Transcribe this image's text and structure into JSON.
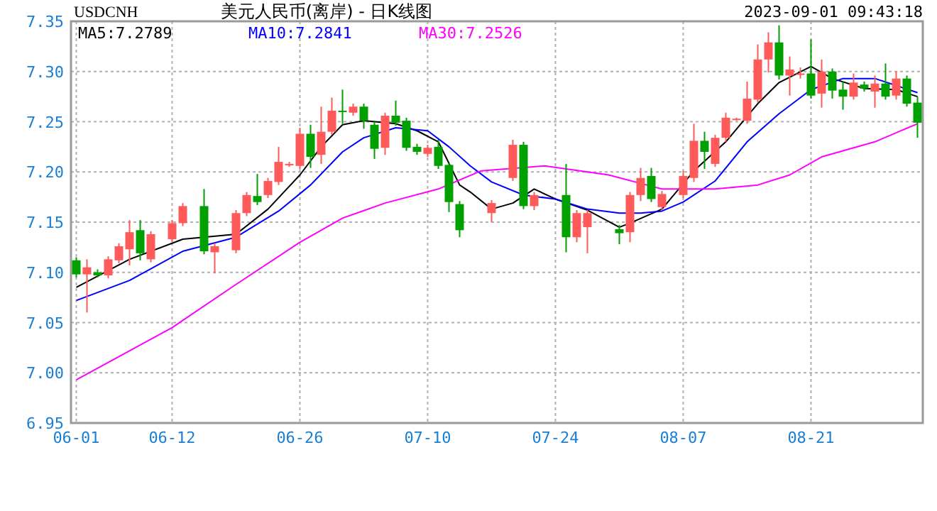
{
  "chart_data": {
    "type": "candlestick",
    "title": "美元人民币(离岸) - 日K线图",
    "annotations": [
      "USDCNH",
      "2023-09-01 09:43:18"
    ],
    "categories": [
      "06-01",
      null,
      null,
      null,
      null,
      null,
      null,
      null,
      null,
      "06-12",
      null,
      null,
      null,
      null,
      null,
      null,
      null,
      null,
      null,
      null,
      null,
      "06-26",
      null,
      null,
      null,
      null,
      null,
      null,
      null,
      null,
      null,
      null,
      null,
      "07-10",
      null,
      null,
      null,
      null,
      null,
      null,
      null,
      null,
      null,
      null,
      null,
      "07-24",
      null,
      null,
      null,
      null,
      null,
      null,
      null,
      null,
      null,
      null,
      null,
      "08-07",
      null,
      null,
      null,
      null,
      null,
      null,
      null,
      null,
      null,
      null,
      null,
      "08-21",
      null,
      null,
      null,
      null,
      null,
      null,
      null,
      null,
      null,
      null
    ],
    "ohlc": [
      [
        7.112,
        7.115,
        7.095,
        7.098
      ],
      [
        7.098,
        7.113,
        7.06,
        7.105
      ],
      [
        7.1,
        7.103,
        7.095,
        7.097
      ],
      [
        7.097,
        7.116,
        7.094,
        7.113
      ],
      [
        7.112,
        7.129,
        7.109,
        7.126
      ],
      [
        7.123,
        7.152,
        7.107,
        7.14
      ],
      [
        7.142,
        7.152,
        7.112,
        7.119
      ],
      [
        7.113,
        7.141,
        7.11,
        7.138
      ],
      null,
      [
        7.133,
        7.152,
        7.13,
        7.149
      ],
      [
        7.149,
        7.169,
        7.146,
        7.166
      ],
      null,
      [
        7.166,
        7.183,
        7.118,
        7.121
      ],
      [
        7.12,
        7.129,
        7.099,
        7.126
      ],
      null,
      [
        7.122,
        7.162,
        7.119,
        7.159
      ],
      [
        7.159,
        7.18,
        7.156,
        7.177
      ],
      [
        7.176,
        7.198,
        7.167,
        7.17
      ],
      [
        7.177,
        7.194,
        7.174,
        7.191
      ],
      [
        7.19,
        7.225,
        7.187,
        7.21
      ],
      [
        7.207,
        7.21,
        7.205,
        7.208
      ],
      [
        7.206,
        7.244,
        7.203,
        7.238
      ],
      [
        7.238,
        7.247,
        7.204,
        7.215
      ],
      [
        7.217,
        7.265,
        7.208,
        7.24
      ],
      [
        7.24,
        7.274,
        7.237,
        7.261
      ],
      [
        7.261,
        7.282,
        7.248,
        7.26
      ],
      [
        7.259,
        7.268,
        7.256,
        7.265
      ],
      [
        7.265,
        7.268,
        7.243,
        7.251
      ],
      [
        7.247,
        7.25,
        7.213,
        7.223
      ],
      [
        7.224,
        7.259,
        7.217,
        7.256
      ],
      [
        7.256,
        7.271,
        7.246,
        7.249
      ],
      [
        7.251,
        7.254,
        7.221,
        7.224
      ],
      [
        7.225,
        7.228,
        7.217,
        7.22
      ],
      [
        7.218,
        7.227,
        7.215,
        7.224
      ],
      [
        7.225,
        7.232,
        7.203,
        7.206
      ],
      [
        7.207,
        7.209,
        7.16,
        7.17
      ],
      [
        7.168,
        7.171,
        7.135,
        7.142
      ],
      null,
      null,
      [
        7.159,
        7.172,
        7.15,
        7.169
      ],
      null,
      [
        7.194,
        7.232,
        7.191,
        7.227
      ],
      [
        7.227,
        7.23,
        7.163,
        7.166
      ],
      [
        7.166,
        7.18,
        7.162,
        7.177
      ],
      null,
      null,
      [
        7.177,
        7.208,
        7.12,
        7.135
      ],
      [
        7.135,
        7.162,
        7.13,
        7.159
      ],
      [
        7.145,
        7.162,
        7.119,
        7.159
      ],
      null,
      null,
      [
        7.143,
        7.147,
        7.128,
        7.139
      ],
      [
        7.14,
        7.18,
        7.13,
        7.177
      ],
      [
        7.177,
        7.204,
        7.171,
        7.194
      ],
      [
        7.196,
        7.204,
        7.17,
        7.173
      ],
      [
        7.165,
        7.181,
        7.162,
        7.178
      ],
      null,
      [
        7.177,
        7.201,
        7.174,
        7.196
      ],
      [
        7.194,
        7.248,
        7.19,
        7.231
      ],
      [
        7.231,
        7.24,
        7.203,
        7.22
      ],
      [
        7.208,
        7.237,
        7.205,
        7.234
      ],
      [
        7.234,
        7.259,
        7.23,
        7.254
      ],
      [
        7.252,
        7.254,
        7.251,
        7.253
      ],
      [
        7.251,
        7.29,
        7.248,
        7.273
      ],
      [
        7.272,
        7.327,
        7.269,
        7.312
      ],
      [
        7.312,
        7.339,
        7.299,
        7.329
      ],
      [
        7.329,
        7.346,
        7.292,
        7.296
      ],
      [
        7.296,
        7.315,
        7.276,
        7.302
      ],
      [
        7.298,
        7.304,
        7.293,
        7.298
      ],
      [
        7.298,
        7.332,
        7.273,
        7.276
      ],
      [
        7.278,
        7.312,
        7.264,
        7.3
      ],
      [
        7.3,
        7.303,
        7.273,
        7.281
      ],
      [
        7.282,
        7.29,
        7.262,
        7.275
      ],
      [
        7.275,
        7.298,
        7.272,
        7.289
      ],
      [
        7.287,
        7.29,
        7.28,
        7.283
      ],
      [
        7.28,
        7.296,
        7.264,
        7.288
      ],
      [
        7.288,
        7.308,
        7.272,
        7.275
      ],
      [
        7.276,
        7.3,
        7.272,
        7.293
      ],
      [
        7.293,
        7.296,
        7.265,
        7.268
      ],
      [
        7.269,
        7.275,
        7.234,
        7.249
      ]
    ],
    "colors": [
      "#00a000",
      "#ff5a5a",
      "#00a000",
      "#ff5a5a",
      "#ff5a5a",
      "#ff5a5a",
      "#00a000",
      "#ff5a5a",
      null,
      "#ff5a5a",
      "#ff5a5a",
      null,
      "#00a000",
      "#ff5a5a",
      null,
      "#ff5a5a",
      "#ff5a5a",
      "#00a000",
      "#ff5a5a",
      "#ff5a5a",
      "#ff5a5a",
      "#ff5a5a",
      "#00a000",
      "#ff5a5a",
      "#ff5a5a",
      "#00a000",
      "#ff5a5a",
      "#00a000",
      "#00a000",
      "#ff5a5a",
      "#00a000",
      "#00a000",
      "#00a000",
      "#ff5a5a",
      "#00a000",
      "#00a000",
      "#00a000",
      null,
      null,
      "#ff5a5a",
      null,
      "#ff5a5a",
      "#00a000",
      "#ff5a5a",
      null,
      null,
      "#00a000",
      "#ff5a5a",
      "#ff5a5a",
      null,
      null,
      "#00a000",
      "#ff5a5a",
      "#ff5a5a",
      "#00a000",
      "#ff5a5a",
      null,
      "#ff5a5a",
      "#ff5a5a",
      "#00a000",
      "#ff5a5a",
      "#ff5a5a",
      "#ff5a5a",
      "#ff5a5a",
      "#ff5a5a",
      "#ff5a5a",
      "#00a000",
      "#ff5a5a",
      "#ff5a5a",
      "#00a000",
      "#ff5a5a",
      "#00a000",
      "#00a000",
      "#ff5a5a",
      "#00a000",
      "#ff5a5a",
      "#00a000",
      "#ff5a5a",
      "#00a000",
      "#00a000"
    ],
    "series": [
      {
        "type": "line",
        "name": "MA5:7.2789",
        "color": "#000000",
        "values": [
          7.085,
          null,
          null,
          null,
          null,
          7.113,
          null,
          null,
          null,
          null,
          7.133,
          null,
          null,
          null,
          null,
          7.138,
          null,
          null,
          7.163,
          null,
          null,
          7.197,
          null,
          7.225,
          null,
          7.247,
          null,
          7.251,
          null,
          null,
          7.248,
          null,
          7.241,
          null,
          7.23,
          null,
          7.187,
          7.18,
          null,
          7.163,
          null,
          7.169,
          null,
          7.183,
          null,
          7.173,
          null,
          null,
          7.162,
          null,
          null,
          7.145,
          7.149,
          null,
          null,
          7.163,
          null,
          null,
          7.201,
          null,
          null,
          7.23,
          null,
          null,
          7.268,
          null,
          7.289,
          null,
          null,
          7.305,
          null,
          7.293,
          null,
          null,
          7.283,
          null,
          null,
          7.282,
          null,
          7.275
        ]
      },
      {
        "type": "line",
        "name": "MA10:7.2841",
        "color": "#0000ff",
        "values": [
          7.072,
          null,
          null,
          null,
          null,
          7.092,
          null,
          null,
          null,
          null,
          7.121,
          null,
          null,
          null,
          null,
          7.135,
          null,
          null,
          null,
          7.161,
          null,
          null,
          7.187,
          null,
          null,
          7.22,
          null,
          7.234,
          null,
          null,
          7.244,
          null,
          null,
          7.241,
          null,
          7.225,
          null,
          7.206,
          null,
          7.19,
          null,
          null,
          7.177,
          null,
          null,
          7.173,
          null,
          null,
          7.163,
          null,
          null,
          7.159,
          null,
          7.159,
          null,
          7.161,
          null,
          7.17,
          null,
          null,
          7.191,
          null,
          null,
          7.23,
          null,
          null,
          7.258,
          null,
          null,
          7.282,
          null,
          null,
          7.293,
          null,
          null,
          7.293,
          null,
          7.286,
          null,
          7.279
        ]
      },
      {
        "type": "line",
        "name": "MA30:7.2526",
        "color": "#ff00ff",
        "values": [
          6.993,
          null,
          null,
          null,
          null,
          null,
          null,
          null,
          null,
          7.045,
          null,
          null,
          null,
          null,
          null,
          7.088,
          null,
          null,
          null,
          null,
          null,
          7.13,
          null,
          null,
          null,
          7.154,
          null,
          null,
          null,
          7.169,
          null,
          null,
          null,
          null,
          7.183,
          null,
          null,
          null,
          7.201,
          null,
          null,
          null,
          null,
          null,
          7.206,
          null,
          null,
          null,
          null,
          null,
          7.197,
          null,
          null,
          null,
          null,
          7.183,
          null,
          null,
          null,
          null,
          7.183,
          null,
          null,
          null,
          7.187,
          null,
          null,
          7.197,
          null,
          null,
          7.215,
          null,
          null,
          null,
          null,
          7.23,
          null,
          null,
          null,
          7.248
        ]
      }
    ],
    "ylim": [
      6.95,
      7.35
    ],
    "yticks": [
      {
        "value": 6.95,
        "label": "6.95"
      },
      {
        "value": 7.0,
        "label": "7.00"
      },
      {
        "value": 7.05,
        "label": "7.05"
      },
      {
        "value": 7.1,
        "label": "7.10"
      },
      {
        "value": 7.15,
        "label": "7.15"
      },
      {
        "value": 7.2,
        "label": "7.20"
      },
      {
        "value": 7.25,
        "label": "7.25"
      },
      {
        "value": 7.3,
        "label": "7.30"
      },
      {
        "value": 7.35,
        "label": "7.35"
      }
    ],
    "grid": true,
    "legend": "top left"
  }
}
